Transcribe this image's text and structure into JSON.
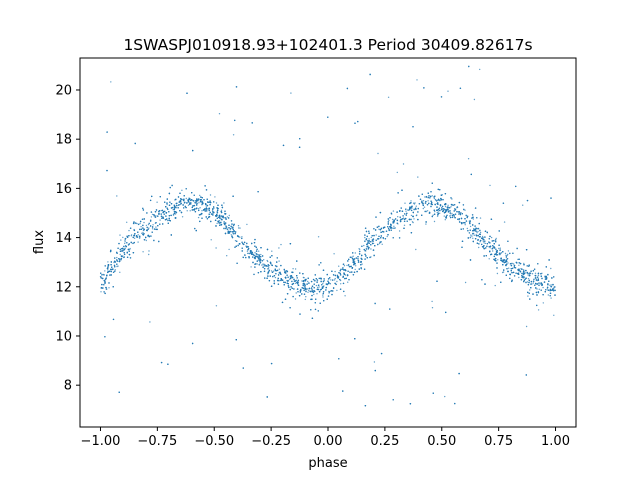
{
  "chart_data": {
    "type": "scatter",
    "title": "1SWASPJ010918.93+102401.3 Period 30409.82617s",
    "xlabel": "phase",
    "ylabel": "flux",
    "xlim": [
      -1.09,
      1.09
    ],
    "ylim": [
      6.3,
      21.3
    ],
    "xticks": [
      "−1.00",
      "−0.75",
      "−0.50",
      "−0.25",
      "0.00",
      "0.25",
      "0.50",
      "0.75",
      "1.00"
    ],
    "xtick_values": [
      -1.0,
      -0.75,
      -0.5,
      -0.25,
      0.0,
      0.25,
      0.5,
      0.75,
      1.0
    ],
    "yticks": [
      "8",
      "10",
      "12",
      "14",
      "16",
      "18",
      "20"
    ],
    "ytick_values": [
      8,
      10,
      12,
      14,
      16,
      18,
      20
    ],
    "grid": false,
    "point_color": "#1f77b4",
    "series": [
      {
        "x": [
          -1.0,
          -0.95,
          -0.9,
          -0.85,
          -0.8,
          -0.75,
          -0.7,
          -0.65,
          -0.6,
          -0.55,
          -0.5,
          -0.45,
          -0.4,
          -0.35,
          -0.3,
          -0.25,
          -0.2,
          -0.15,
          -0.1,
          -0.05,
          0.0,
          0.05,
          0.1,
          0.15,
          0.2,
          0.25,
          0.3,
          0.35,
          0.4,
          0.45,
          0.5,
          0.55,
          0.6,
          0.65,
          0.7,
          0.75,
          0.8,
          0.85,
          0.9,
          0.95,
          1.0
        ],
        "y": [
          12.1,
          12.8,
          13.5,
          14.0,
          14.4,
          14.8,
          15.1,
          15.3,
          15.4,
          15.3,
          15.1,
          14.6,
          14.0,
          13.5,
          13.1,
          12.7,
          12.4,
          12.2,
          12.0,
          11.9,
          12.0,
          12.4,
          12.9,
          13.4,
          13.9,
          14.3,
          14.7,
          15.0,
          15.3,
          15.4,
          15.3,
          15.1,
          14.7,
          14.2,
          13.7,
          13.3,
          12.9,
          12.6,
          12.3,
          12.1,
          12.0
        ]
      }
    ]
  }
}
